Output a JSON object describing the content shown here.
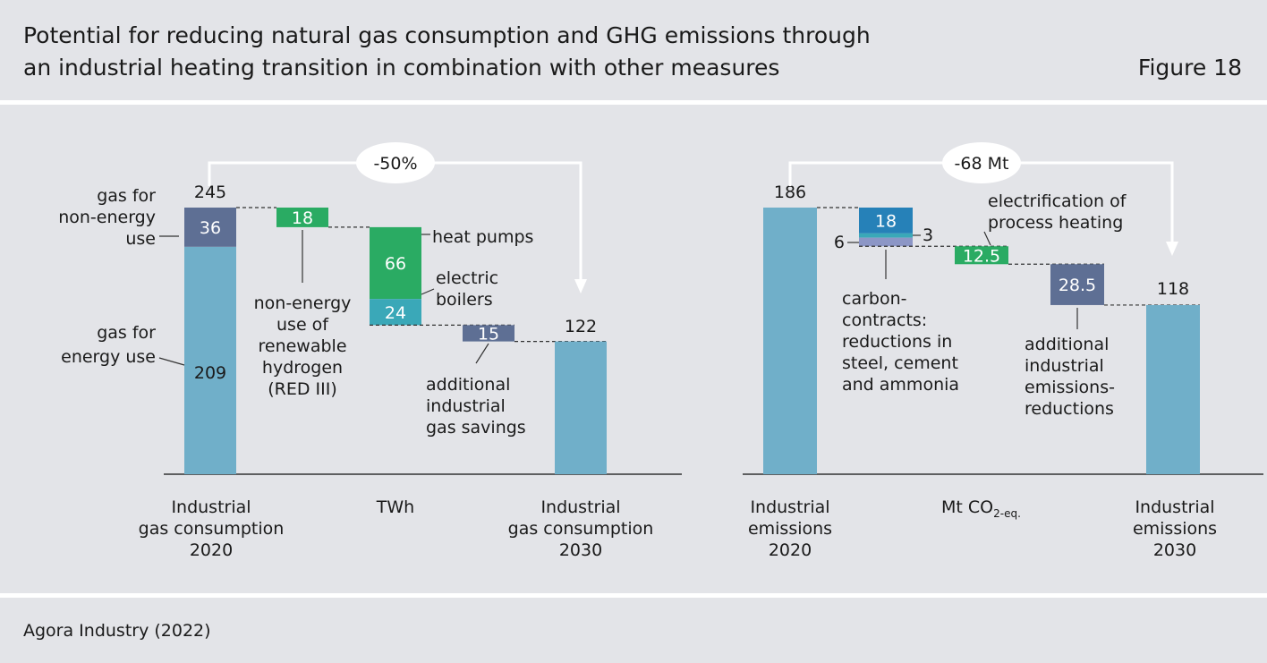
{
  "header": {
    "title_line1": "Potential for reducing natural gas consumption and GHG emissions through",
    "title_line2": "an industrial heating transition in combination with other measures",
    "figure_label": "Figure 18"
  },
  "footer": {
    "source": "Agora Industry (2022)"
  },
  "colors": {
    "total": "#70afc9",
    "dark": "#5e6f94",
    "green": "#2aab63",
    "teal": "#3aa8b8",
    "blue": "#2681b8",
    "lightpurple": "#8c96c6"
  },
  "chart_data": [
    {
      "type": "waterfall",
      "unit_label": "TWh",
      "change_label": "-50%",
      "categories": [
        "Industrial gas consumption 2020",
        "Industrial gas consumption 2030"
      ],
      "category_lines": [
        [
          "Industrial",
          "gas consumption",
          "2020"
        ],
        [
          "Industrial",
          "gas consumption",
          "2030"
        ]
      ],
      "start": {
        "total": 245,
        "segments": [
          {
            "name": "gas for energy use",
            "value": 209,
            "value_label": "209",
            "color": "total",
            "label_lines": [
              "gas for",
              "energy use"
            ]
          },
          {
            "name": "gas for non-energy use",
            "value": 36,
            "value_label": "36",
            "color": "dark",
            "label_lines": [
              "gas for",
              "non-energy",
              "use"
            ]
          }
        ]
      },
      "steps": [
        {
          "value": 18,
          "value_label": "18",
          "color": "green",
          "label_lines": [
            "non-energy",
            "use of",
            "renewable",
            "hydrogen",
            "(RED III)"
          ]
        },
        {
          "value": 24,
          "value_label": "24",
          "color": "teal",
          "label_lines": [
            "electric",
            "boilers"
          ]
        },
        {
          "value": 66,
          "value_label": "66",
          "color": "green",
          "label_lines": [
            "heat pumps"
          ]
        },
        {
          "value": 15,
          "value_label": "15",
          "color": "dark",
          "label_lines": [
            "additional",
            "industrial",
            "gas savings"
          ]
        }
      ],
      "end": {
        "total": 122
      }
    },
    {
      "type": "waterfall",
      "unit_label": "Mt CO",
      "unit_sub": "2-eq.",
      "change_label": "-68 Mt",
      "categories": [
        "Industrial emissions 2020",
        "Industrial emissions 2030"
      ],
      "category_lines": [
        [
          "Industrial",
          "emissions",
          "2020"
        ],
        [
          "Industrial",
          "emissions",
          "2030"
        ]
      ],
      "start": {
        "total": 186
      },
      "steps": [
        {
          "value": 6,
          "value_label": "6",
          "color": "lightpurple"
        },
        {
          "value": 3,
          "value_label": "3",
          "color": "teal"
        },
        {
          "value": 18,
          "value_label": "18",
          "color": "blue"
        },
        {
          "value": 12.5,
          "value_label": "12.5",
          "color": "green"
        },
        {
          "value": 28.5,
          "value_label": "28.5",
          "color": "dark"
        }
      ],
      "step_labels": {
        "carbon_contracts": [
          "carbon-",
          "contracts:",
          "reductions in",
          "steel, cement",
          "and ammonia"
        ],
        "electrification": [
          "electrification of",
          "process heating"
        ],
        "additional": [
          "additional",
          "industrial",
          "emissions-",
          "reductions"
        ]
      },
      "end": {
        "total": 118
      }
    }
  ]
}
